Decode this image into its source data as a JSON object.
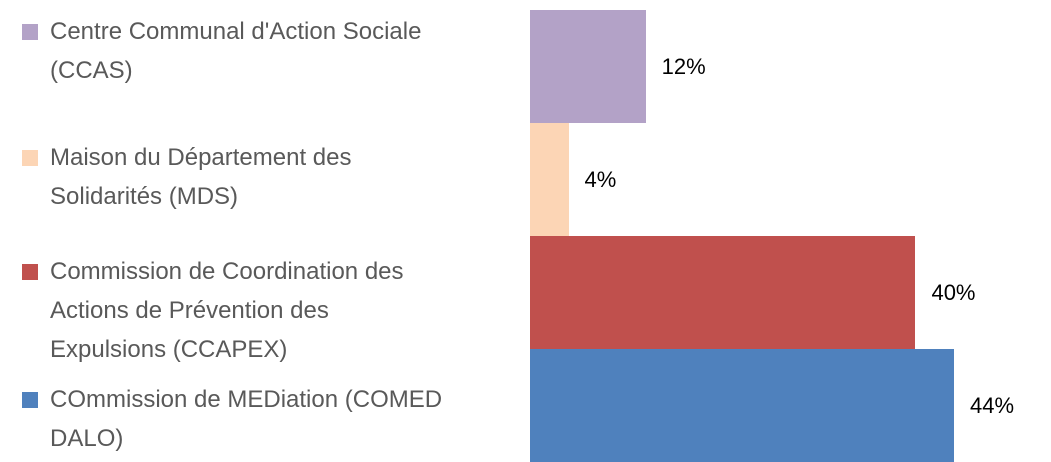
{
  "chart_data": {
    "type": "bar",
    "orientation": "horizontal",
    "categories": [
      "Centre Communal d'Action Sociale (CCAS)",
      "Maison du Département des Solidarités (MDS)",
      "Commission de Coordination des Actions de Prévention des Expulsions (CCAPEX)",
      "COmmission de MEDiation (COMED DALO)"
    ],
    "values": [
      12,
      4,
      40,
      44
    ],
    "value_labels": [
      "12%",
      "4%",
      "40%",
      "44%"
    ],
    "colors": [
      "#b3a2c7",
      "#fcd5b5",
      "#c0504d",
      "#4f81bd"
    ],
    "legend": "left"
  }
}
